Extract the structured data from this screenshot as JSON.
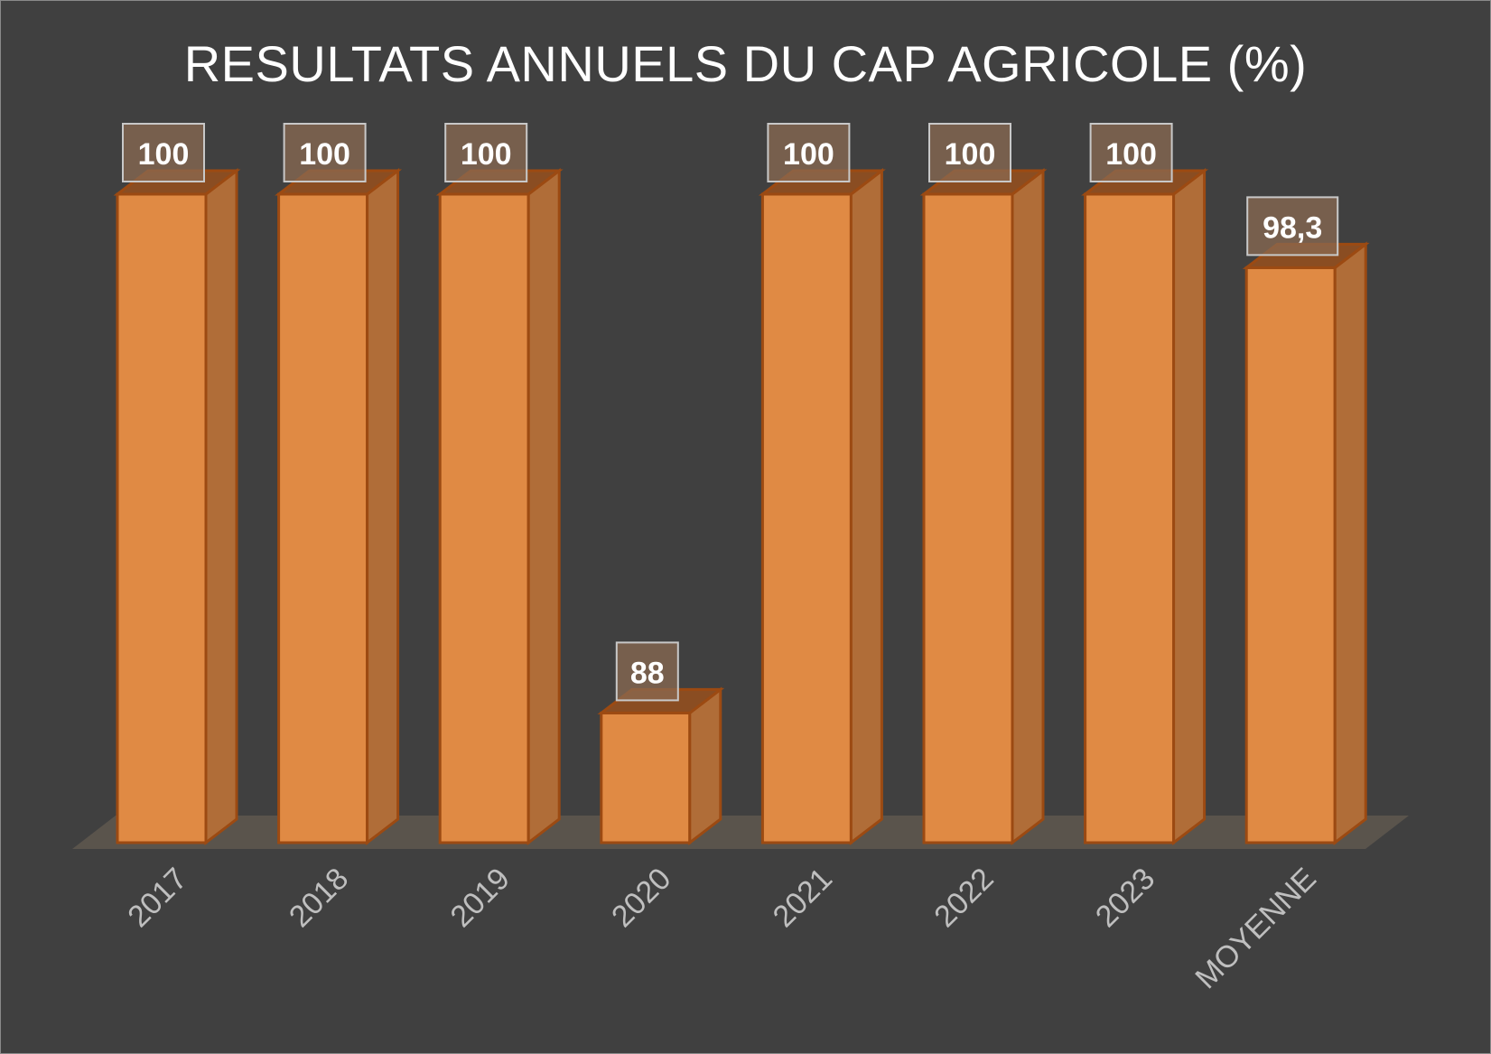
{
  "chart_data": {
    "type": "bar",
    "style": "3d-column",
    "title": "RESULTATS ANNUELS DU CAP AGRICOLE (%)",
    "categories": [
      "2017",
      "2018",
      "2019",
      "2020",
      "2021",
      "2022",
      "2023",
      "MOYENNE"
    ],
    "values": [
      100,
      100,
      100,
      88,
      100,
      100,
      100,
      98.3
    ],
    "data_labels": [
      "100",
      "100",
      "100",
      "88",
      "100",
      "100",
      "100",
      "98,3"
    ],
    "xlabel": "",
    "ylabel": "",
    "ylim": [
      85,
      100
    ],
    "grid": false,
    "legend": "none",
    "colors": {
      "background": "#404040",
      "bar_front": "#e08a44",
      "bar_side": "#b06d38",
      "bar_top": "#8a4d22",
      "bar_edge": "#9c4a12",
      "floor": "#5a544c",
      "label_box": "#8a6a52"
    }
  }
}
